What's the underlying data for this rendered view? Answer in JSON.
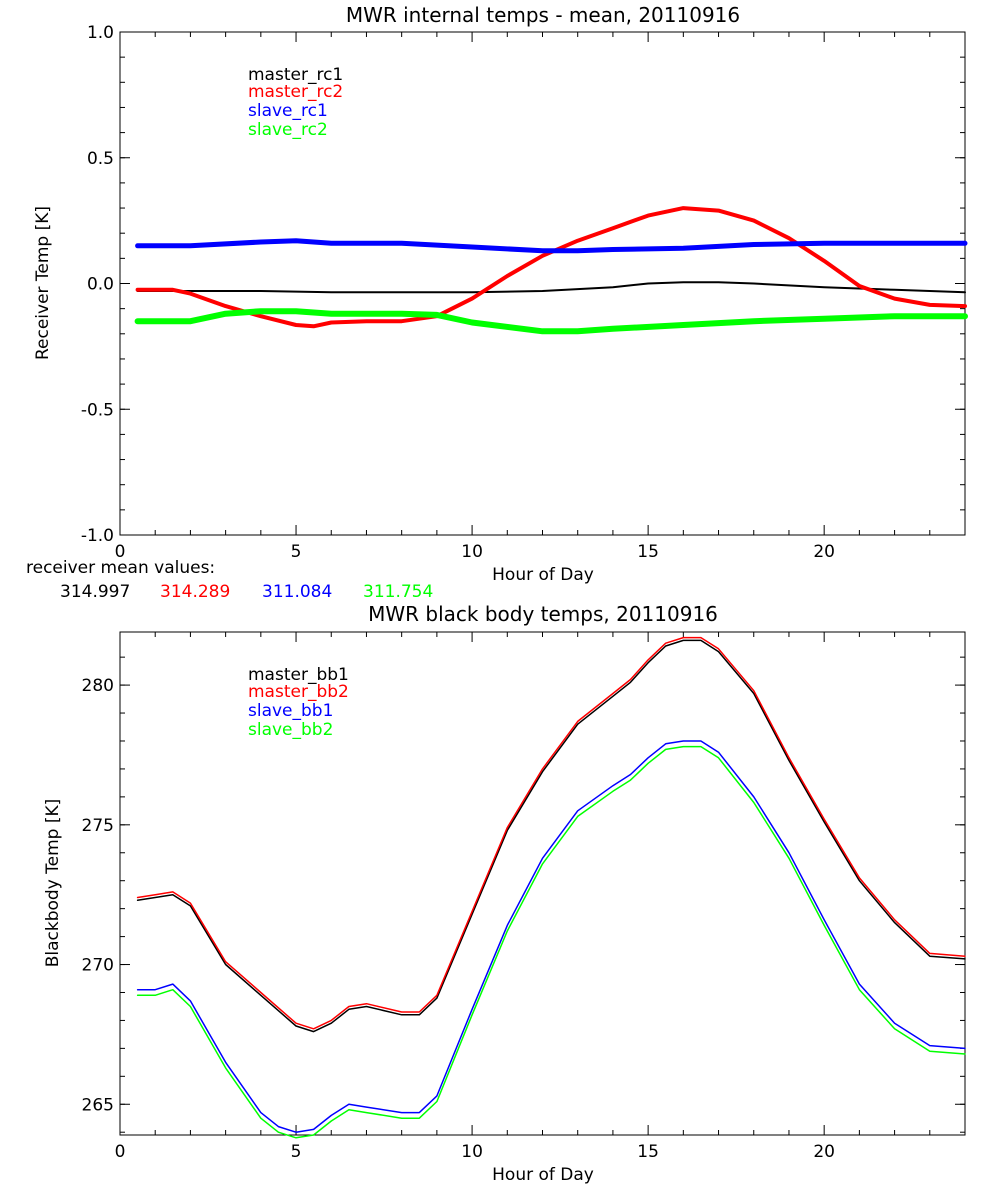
{
  "colors": {
    "black": "#000000",
    "red": "#ff0000",
    "blue": "#0000ff",
    "green": "#00ff00"
  },
  "receiver_means": {
    "label": "receiver mean values:",
    "values": [
      "314.997",
      "314.289",
      "311.084",
      "311.754"
    ]
  },
  "chart_data": [
    {
      "type": "line",
      "title": "MWR internal temps - mean, 20110916",
      "xlabel": "Hour of Day",
      "ylabel": "Receiver Temp [K]",
      "xlim": [
        0,
        24
      ],
      "ylim": [
        -1.0,
        1.0
      ],
      "xticks": [
        0,
        5,
        10,
        15,
        20
      ],
      "xtick_labels": [
        "0",
        "5",
        "10",
        "15",
        "20"
      ],
      "yticks": [
        -1.0,
        -0.5,
        0.0,
        0.5,
        1.0
      ],
      "ytick_labels": [
        "-1.0",
        "-0.5",
        "0.0",
        "0.5",
        "1.0"
      ],
      "grid": false,
      "legend_position": "top-left",
      "series": [
        {
          "name": "master_rc1",
          "color": "#000000",
          "width": 2,
          "x": [
            0.5,
            2,
            4,
            6,
            8,
            10,
            12,
            14,
            15,
            16,
            17,
            18,
            20,
            22,
            24
          ],
          "y": [
            -0.03,
            -0.03,
            -0.03,
            -0.035,
            -0.035,
            -0.035,
            -0.03,
            -0.015,
            0.0,
            0.005,
            0.005,
            0.0,
            -0.015,
            -0.025,
            -0.035
          ]
        },
        {
          "name": "master_rc2",
          "color": "#ff0000",
          "width": 4,
          "x": [
            0.5,
            1.5,
            2,
            3,
            4,
            5,
            5.5,
            6,
            7,
            8,
            9,
            10,
            11,
            12,
            13,
            14,
            15,
            16,
            17,
            18,
            19,
            20,
            21,
            22,
            23,
            24
          ],
          "y": [
            -0.025,
            -0.025,
            -0.04,
            -0.09,
            -0.13,
            -0.165,
            -0.17,
            -0.155,
            -0.15,
            -0.15,
            -0.13,
            -0.06,
            0.03,
            0.11,
            0.17,
            0.22,
            0.27,
            0.3,
            0.29,
            0.25,
            0.18,
            0.09,
            -0.01,
            -0.06,
            -0.085,
            -0.09
          ]
        },
        {
          "name": "slave_rc1",
          "color": "#0000ff",
          "width": 5,
          "x": [
            0.5,
            2,
            4,
            5,
            6,
            8,
            10,
            12,
            13,
            14,
            16,
            18,
            20,
            22,
            24
          ],
          "y": [
            0.15,
            0.15,
            0.165,
            0.17,
            0.16,
            0.16,
            0.145,
            0.13,
            0.13,
            0.135,
            0.14,
            0.155,
            0.16,
            0.16,
            0.16
          ]
        },
        {
          "name": "slave_rc2",
          "color": "#00ff00",
          "width": 6,
          "x": [
            0.5,
            2,
            3,
            4,
            5,
            6,
            8,
            9,
            10,
            12,
            13,
            14,
            16,
            18,
            20,
            22,
            24
          ],
          "y": [
            -0.15,
            -0.15,
            -0.12,
            -0.11,
            -0.11,
            -0.12,
            -0.12,
            -0.125,
            -0.155,
            -0.19,
            -0.19,
            -0.18,
            -0.165,
            -0.15,
            -0.14,
            -0.13,
            -0.13
          ]
        }
      ]
    },
    {
      "type": "line",
      "title": "MWR black body temps, 20110916",
      "xlabel": "Hour of Day",
      "ylabel": "Blackbody Temp [K]",
      "xlim": [
        0,
        24
      ],
      "ylim": [
        263.9,
        281.9
      ],
      "xticks": [
        0,
        5,
        10,
        15,
        20
      ],
      "xtick_labels": [
        "0",
        "5",
        "10",
        "15",
        "20"
      ],
      "yticks": [
        265,
        270,
        275,
        280
      ],
      "ytick_labels": [
        "265",
        "270",
        "275",
        "280"
      ],
      "grid": false,
      "legend_position": "top-left",
      "series": [
        {
          "name": "master_bb1",
          "color": "#000000",
          "width": 1.5,
          "x": [
            0.5,
            1,
            1.5,
            2,
            3,
            4,
            5,
            5.5,
            6,
            6.5,
            7,
            8,
            8.5,
            9,
            10,
            11,
            12,
            13,
            14,
            14.5,
            15,
            15.5,
            16,
            16.5,
            17,
            18,
            19,
            20,
            21,
            22,
            23,
            24
          ],
          "y": [
            272.3,
            272.4,
            272.5,
            272.1,
            270.0,
            268.9,
            267.8,
            267.6,
            267.9,
            268.4,
            268.5,
            268.2,
            268.2,
            268.8,
            271.8,
            274.8,
            276.9,
            278.6,
            279.6,
            280.1,
            280.8,
            281.4,
            281.6,
            281.6,
            281.2,
            279.7,
            277.3,
            275.1,
            273.0,
            271.5,
            270.3,
            270.2
          ]
        },
        {
          "name": "master_bb2",
          "color": "#ff0000",
          "width": 1.5,
          "x": [
            0.5,
            1,
            1.5,
            2,
            3,
            4,
            5,
            5.5,
            6,
            6.5,
            7,
            8,
            8.5,
            9,
            10,
            11,
            12,
            13,
            14,
            14.5,
            15,
            15.5,
            16,
            16.5,
            17,
            18,
            19,
            20,
            21,
            22,
            23,
            24
          ],
          "y": [
            272.4,
            272.5,
            272.6,
            272.2,
            270.1,
            269.0,
            267.9,
            267.7,
            268.0,
            268.5,
            268.6,
            268.3,
            268.3,
            268.9,
            271.9,
            274.9,
            277.0,
            278.7,
            279.7,
            280.2,
            280.9,
            281.5,
            281.7,
            281.7,
            281.3,
            279.8,
            277.4,
            275.2,
            273.1,
            271.6,
            270.4,
            270.3
          ]
        },
        {
          "name": "slave_bb1",
          "color": "#0000ff",
          "width": 1.5,
          "x": [
            0.5,
            1,
            1.5,
            2,
            3,
            4,
            4.5,
            5,
            5.5,
            6,
            6.5,
            7,
            8,
            8.5,
            9,
            10,
            11,
            12,
            13,
            14,
            14.5,
            15,
            15.5,
            16,
            16.5,
            17,
            18,
            19,
            20,
            21,
            22,
            23,
            24
          ],
          "y": [
            269.1,
            269.1,
            269.3,
            268.7,
            266.5,
            264.7,
            264.2,
            264.0,
            264.1,
            264.6,
            265.0,
            264.9,
            264.7,
            264.7,
            265.3,
            268.4,
            271.4,
            273.8,
            275.5,
            276.4,
            276.8,
            277.4,
            277.9,
            278.0,
            278.0,
            277.6,
            276.0,
            274.0,
            271.6,
            269.3,
            267.9,
            267.1,
            267.0
          ]
        },
        {
          "name": "slave_bb2",
          "color": "#00ff00",
          "width": 1.5,
          "x": [
            0.5,
            1,
            1.5,
            2,
            3,
            4,
            4.5,
            5,
            5.5,
            6,
            6.5,
            7,
            8,
            8.5,
            9,
            10,
            11,
            12,
            13,
            14,
            14.5,
            15,
            15.5,
            16,
            16.5,
            17,
            18,
            19,
            20,
            21,
            22,
            23,
            24
          ],
          "y": [
            268.9,
            268.9,
            269.1,
            268.5,
            266.3,
            264.5,
            264.0,
            263.8,
            263.9,
            264.4,
            264.8,
            264.7,
            264.5,
            264.5,
            265.1,
            268.2,
            271.2,
            273.6,
            275.3,
            276.2,
            276.6,
            277.2,
            277.7,
            277.8,
            277.8,
            277.4,
            275.8,
            273.8,
            271.4,
            269.1,
            267.7,
            266.9,
            266.8
          ]
        }
      ]
    }
  ]
}
